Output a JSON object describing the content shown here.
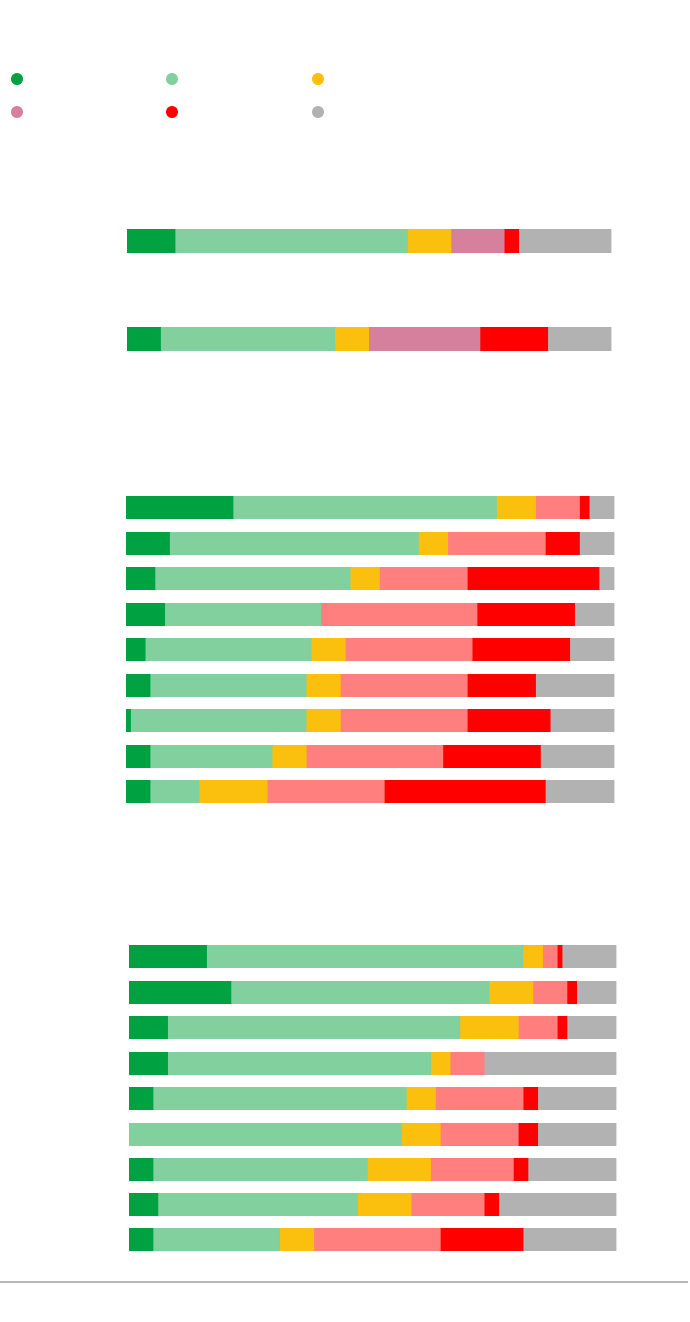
{
  "legend": {
    "placement": "top-left",
    "entries": [
      {
        "key": "c1",
        "color": "#00a140"
      },
      {
        "key": "c2",
        "color": "#81d09e"
      },
      {
        "key": "c3",
        "color": "#fbbf0d"
      },
      {
        "key": "c4",
        "color": "#d6809e"
      },
      {
        "key": "c5",
        "color": "#fe0000"
      },
      {
        "key": "c6",
        "color": "#b2b2b2"
      }
    ]
  },
  "chart_data": [
    {
      "type": "bar",
      "orientation": "horizontal",
      "stacked": true,
      "normalized": true,
      "segment_colors": [
        "#00a140",
        "#81d09e",
        "#fbbf0d",
        "#d6809e",
        "#fe0000",
        "#b2b2b2"
      ],
      "rows": [
        [
          10,
          48,
          9,
          11,
          3,
          19
        ],
        [
          7,
          36,
          7,
          23,
          14,
          13
        ]
      ]
    },
    {
      "type": "bar",
      "orientation": "horizontal",
      "stacked": true,
      "normalized": true,
      "segment_colors": [
        "#00a140",
        "#81d09e",
        "#fbbf0d",
        "#ff7f7f",
        "#fe0000",
        "#b2b2b2"
      ],
      "rows": [
        [
          22,
          54,
          8,
          9,
          2,
          5
        ],
        [
          9,
          51,
          6,
          20,
          7,
          7
        ],
        [
          6,
          40,
          6,
          18,
          27,
          3
        ],
        [
          8,
          32,
          0,
          32,
          20,
          8
        ],
        [
          4,
          34,
          7,
          26,
          20,
          9
        ],
        [
          5,
          32,
          7,
          26,
          14,
          16
        ],
        [
          1,
          36,
          7,
          26,
          17,
          13
        ],
        [
          5,
          25,
          7,
          28,
          20,
          15
        ],
        [
          5,
          10,
          14,
          24,
          33,
          14
        ]
      ]
    },
    {
      "type": "bar",
      "orientation": "horizontal",
      "stacked": true,
      "normalized": true,
      "segment_colors": [
        "#00a140",
        "#81d09e",
        "#fbbf0d",
        "#ff7f7f",
        "#fe0000",
        "#b2b2b2"
      ],
      "rows": [
        [
          16,
          65,
          4,
          3,
          1,
          11
        ],
        [
          21,
          53,
          9,
          7,
          2,
          8
        ],
        [
          8,
          60,
          12,
          8,
          2,
          10
        ],
        [
          8,
          54,
          4,
          7,
          0,
          27
        ],
        [
          5,
          52,
          6,
          18,
          3,
          16
        ],
        [
          0,
          56,
          8,
          16,
          4,
          16
        ],
        [
          5,
          44,
          13,
          17,
          3,
          18
        ],
        [
          6,
          41,
          11,
          15,
          3,
          24
        ],
        [
          5,
          26,
          7,
          26,
          17,
          19
        ]
      ]
    }
  ]
}
